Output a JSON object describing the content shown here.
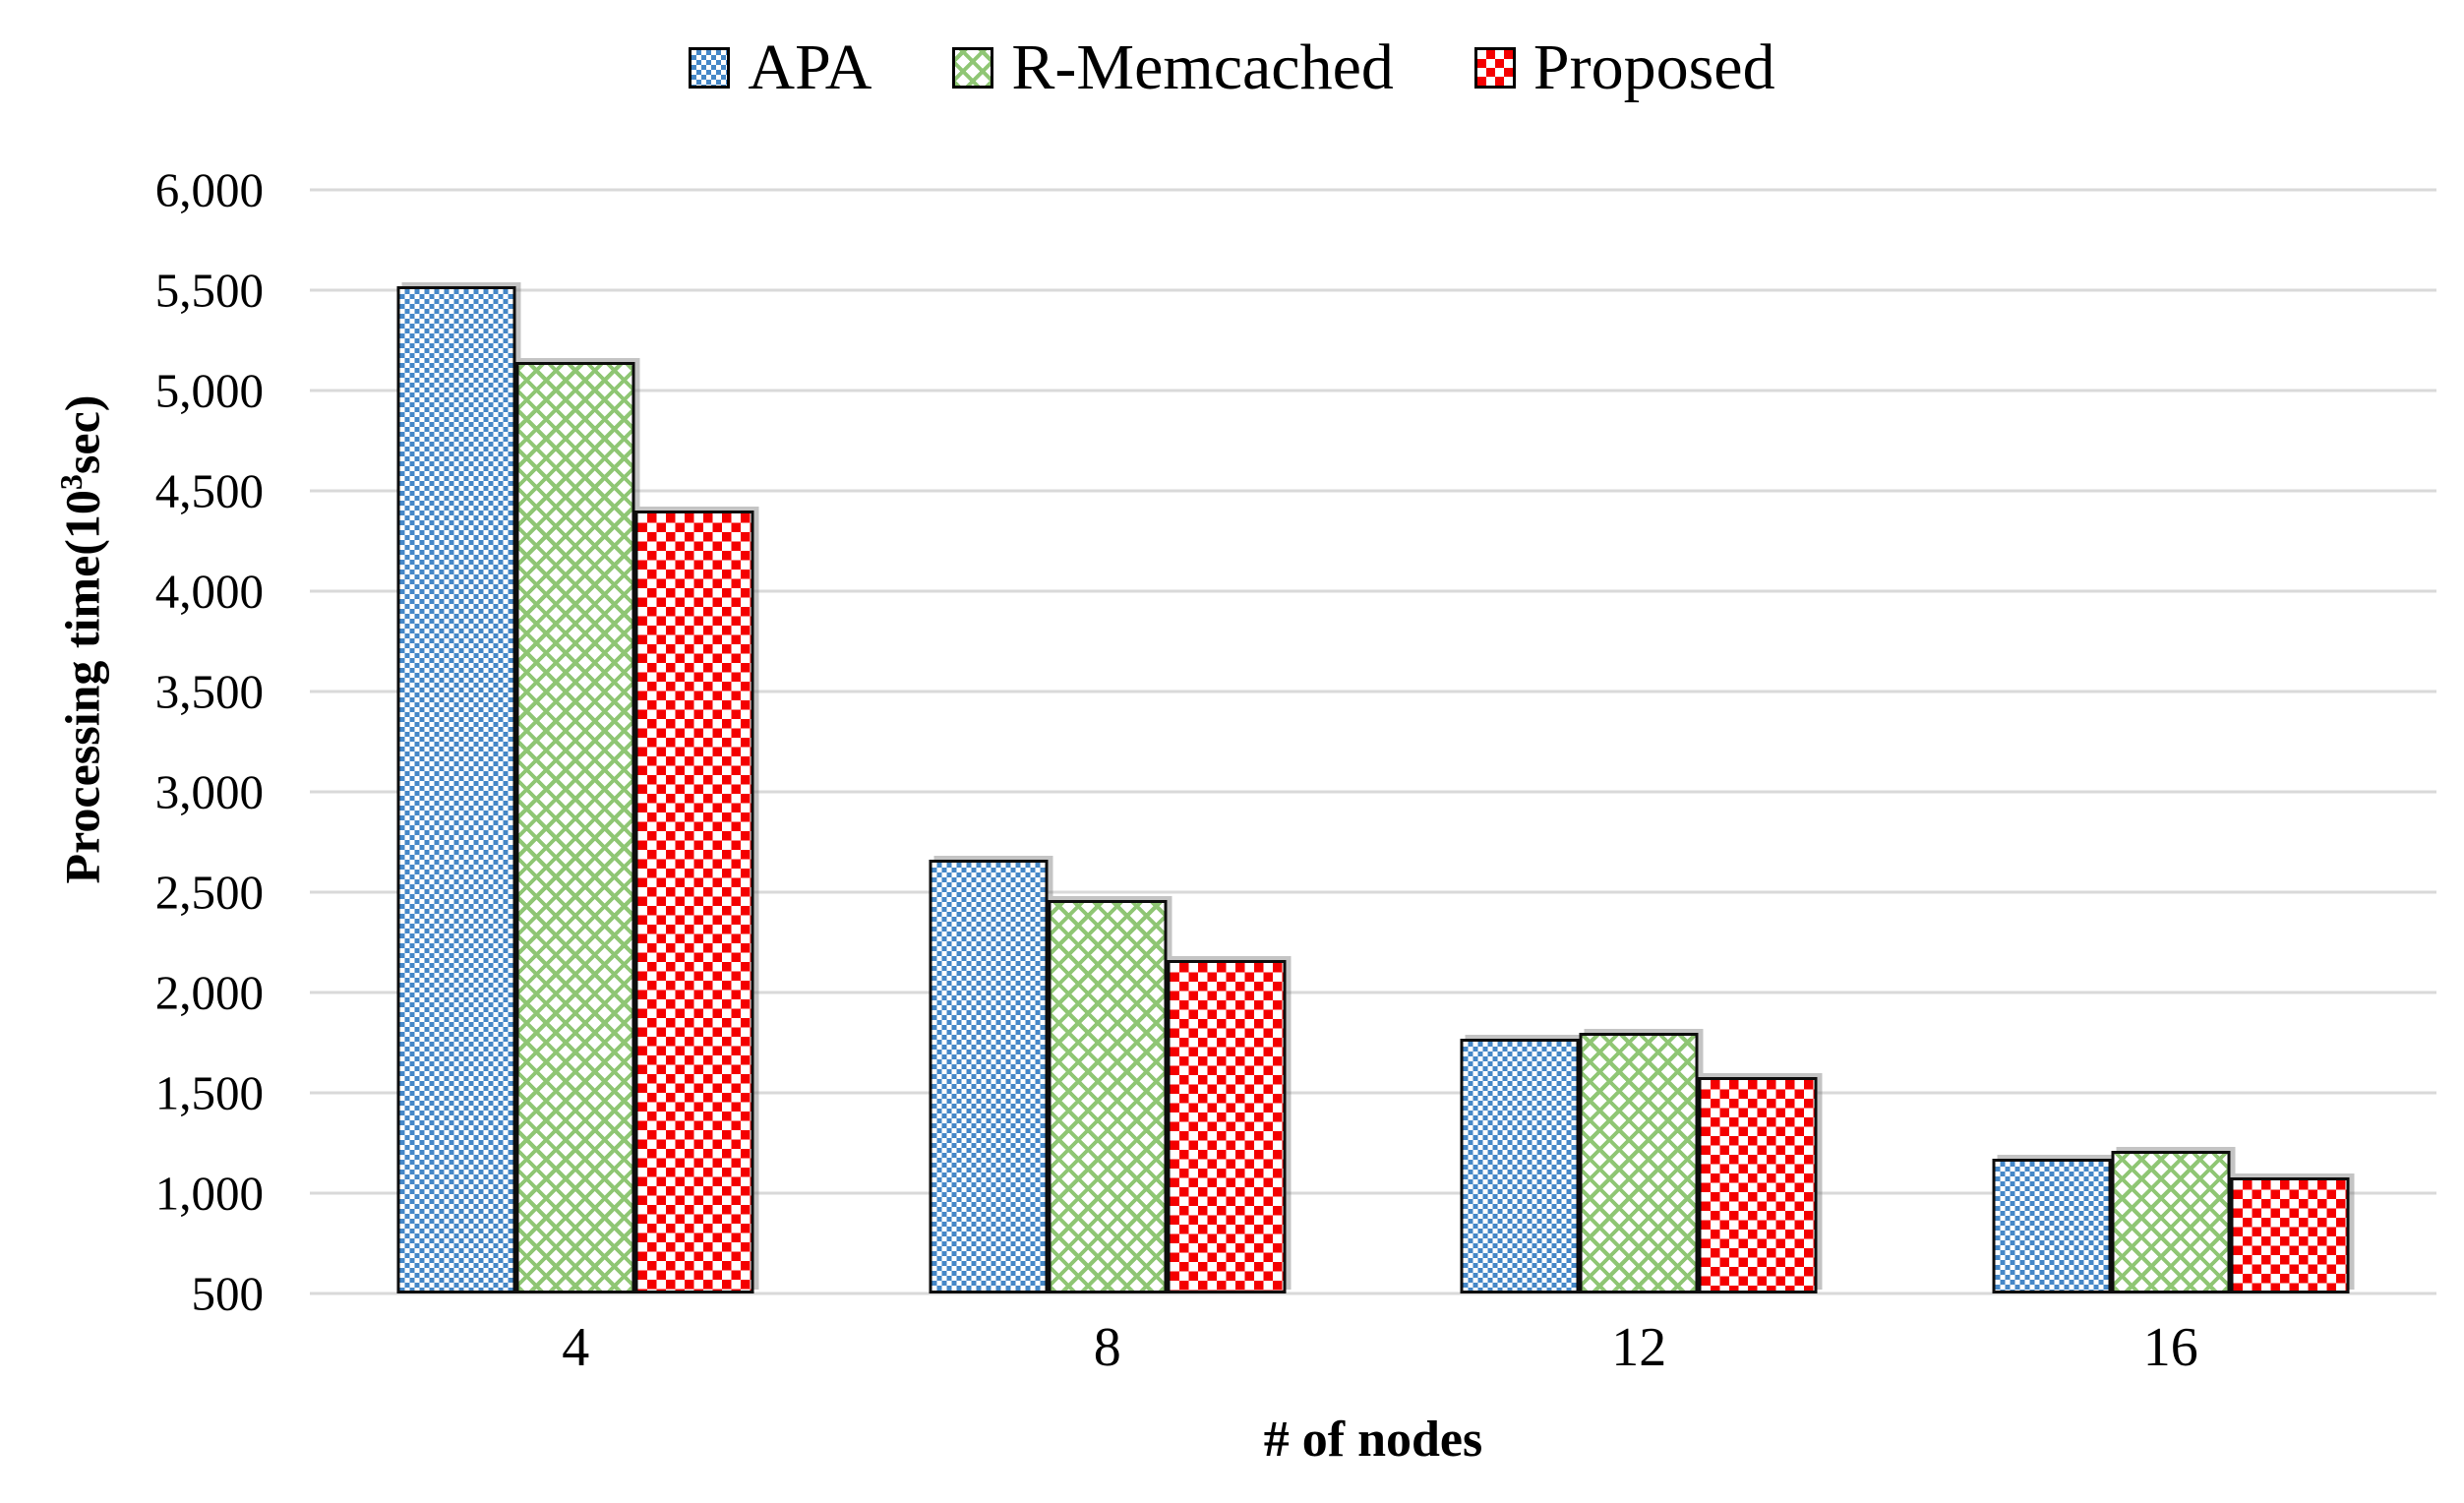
{
  "chart_data": {
    "type": "bar",
    "title": "",
    "xlabel": "# of nodes",
    "ylabel": "Processing time(10³sec)",
    "ylabel_parts": {
      "pre": "Processing time(10",
      "sup": "3",
      "post": "sec)"
    },
    "categories": [
      "4",
      "8",
      "12",
      "16"
    ],
    "series": [
      {
        "name": "APA",
        "key": "apa",
        "pattern": "blue-dot-grid",
        "color": "#4587C7",
        "values": [
          5520,
          2660,
          1770,
          1170
        ]
      },
      {
        "name": "R-Memcached",
        "key": "rmem",
        "pattern": "green-diagonal-weave",
        "color": "#8FC674",
        "values": [
          5140,
          2460,
          1800,
          1210
        ]
      },
      {
        "name": "Proposed",
        "key": "prop",
        "pattern": "red-checkerboard",
        "color": "#F40000",
        "values": [
          4400,
          2160,
          1580,
          1080
        ]
      }
    ],
    "ylim": [
      500,
      6000
    ],
    "y_tick_step": 500,
    "y_tick_labels": [
      "6,000",
      "5,500",
      "5,000",
      "4,500",
      "4,000",
      "3,500",
      "3,000",
      "2,500",
      "2,000",
      "1,500",
      "1,000",
      "500"
    ],
    "grid": true,
    "legend_position": "top-center",
    "gridline_color": "#D9D9D9",
    "bar_border_color": "#0D0D0D",
    "background_color": "#FFFFFF",
    "text_color": "#000000"
  }
}
